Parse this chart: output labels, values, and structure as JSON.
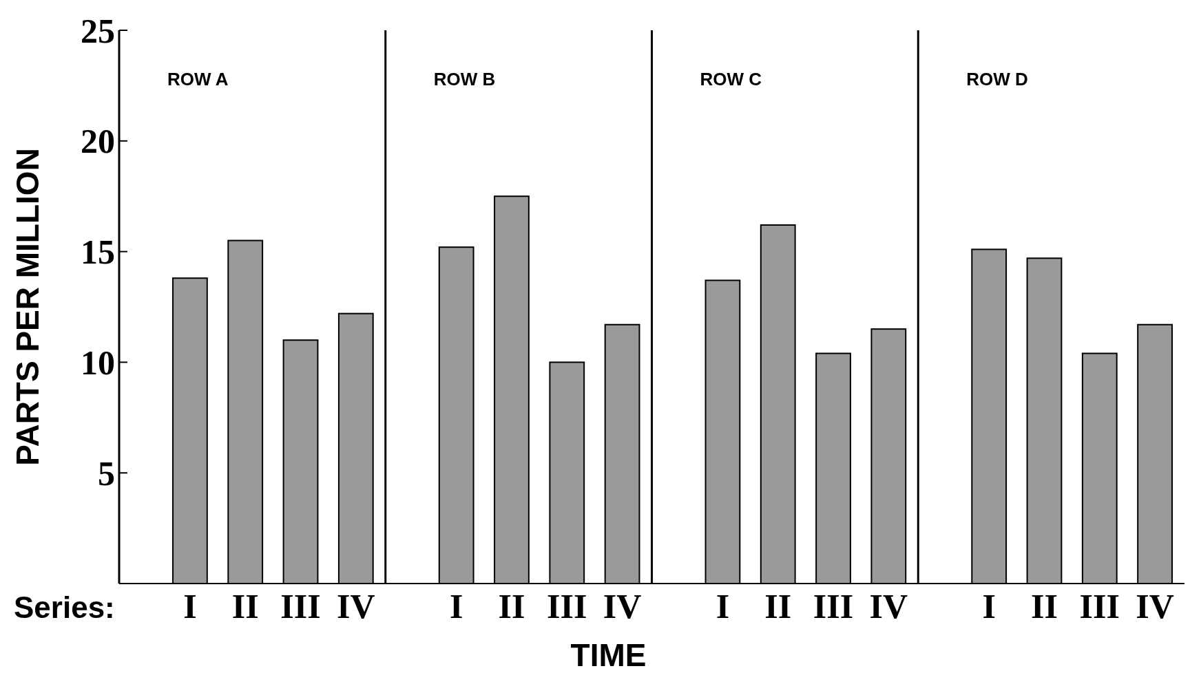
{
  "chart_data": [
    {
      "type": "bar",
      "title": "ROW A",
      "ylabel": "PARTS PER MILLION",
      "annotations": [
        "Series:"
      ],
      "categories": [
        "I",
        "II",
        "III",
        "IV"
      ],
      "values": [
        13.8,
        15.5,
        11.0,
        12.2
      ],
      "color": "#9a9a9a",
      "ylim": [
        0,
        25
      ],
      "yticks": [
        5,
        10,
        15,
        20,
        25
      ]
    },
    {
      "type": "bar",
      "title": "ROW B",
      "xlabel": "TIME",
      "categories": [
        "I",
        "II",
        "III",
        "IV"
      ],
      "values": [
        15.2,
        17.5,
        10.0,
        11.7
      ],
      "color": "#9a9a9a",
      "ylim": [
        0,
        25
      ],
      "tick_labels": "x"
    },
    {
      "type": "bar",
      "title": "ROW C",
      "categories": [
        "I",
        "II",
        "III",
        "IV"
      ],
      "values": [
        13.7,
        16.2,
        10.4,
        11.5
      ],
      "color": "#9a9a9a",
      "ylim": [
        0,
        25
      ],
      "tick_labels": "x"
    },
    {
      "type": "bar",
      "title": "ROW D",
      "categories": [
        "I",
        "II",
        "III",
        "IV"
      ],
      "values": [
        15.1,
        14.7,
        10.4,
        11.7
      ],
      "color": "#9a9a9a",
      "ylim": [
        0,
        25
      ],
      "tick_labels": "x"
    }
  ]
}
